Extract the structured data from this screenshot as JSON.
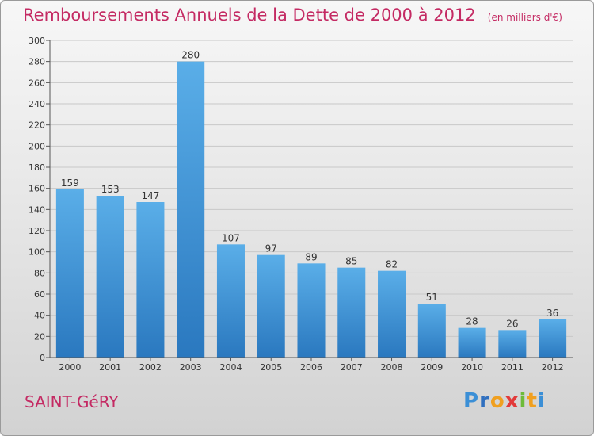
{
  "title": "Remboursements Annuels de la Dette de 2000 à 2012",
  "unit": "(en milliers d'€)",
  "commune": "SAINT-GéRY",
  "logo": {
    "letters": [
      "P",
      "r",
      "o",
      "x",
      "i",
      "t",
      "i"
    ],
    "colors": [
      "#3b8fd6",
      "#2f6fbf",
      "#f0a020",
      "#e23a3a",
      "#6dbb3a",
      "#f0a020",
      "#3b8fd6"
    ]
  },
  "colors": {
    "bar_top": "#5aaee8",
    "bar_bottom": "#2a78bf",
    "accent": "#c42a63"
  },
  "chart_data": {
    "type": "bar",
    "title": "Remboursements Annuels de la Dette de 2000 à 2012",
    "subtitle": "(en milliers d'€)",
    "categories": [
      "2000",
      "2001",
      "2002",
      "2003",
      "2004",
      "2005",
      "2006",
      "2007",
      "2008",
      "2009",
      "2010",
      "2011",
      "2012"
    ],
    "values": [
      159,
      153,
      147,
      280,
      107,
      97,
      89,
      85,
      82,
      51,
      28,
      26,
      36
    ],
    "value_labels": [
      "159",
      "153",
      "147",
      "280",
      "107",
      "97",
      "89",
      "85",
      "82",
      "51",
      "28",
      "26",
      "36"
    ],
    "ylim": [
      0,
      300
    ],
    "yticks": [
      0,
      20,
      40,
      60,
      80,
      100,
      120,
      140,
      160,
      180,
      200,
      220,
      240,
      260,
      280,
      300
    ],
    "ytick_labels": [
      "0",
      "20",
      "40",
      "60",
      "80",
      "100",
      "120",
      "140",
      "160",
      "180",
      "200",
      "220",
      "240",
      "260",
      "280",
      "300"
    ],
    "grid": true,
    "xlabel": "",
    "ylabel": ""
  }
}
